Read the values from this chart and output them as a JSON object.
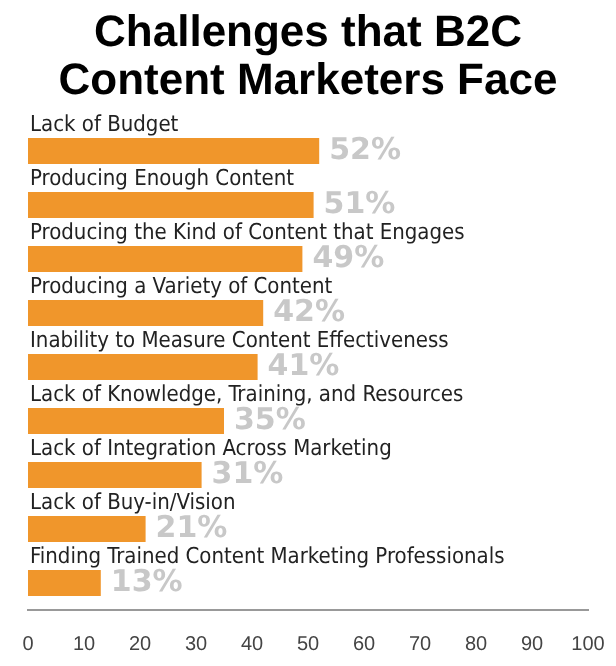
{
  "chart_data": {
    "type": "bar",
    "orientation": "horizontal",
    "title": "Challenges that B2C Content Marketers Face",
    "categories": [
      "Lack of Budget",
      "Producing Enough Content",
      "Producing the Kind of Content that Engages",
      "Producing a Variety of Content",
      "Inability to Measure Content Effectiveness",
      "Lack of Knowledge, Training, and Resources",
      "Lack of Integration Across Marketing",
      "Lack of Buy-in/Vision",
      "Finding Trained Content Marketing Professionals"
    ],
    "values": [
      52,
      51,
      49,
      42,
      41,
      35,
      31,
      21,
      13
    ],
    "value_labels": [
      "52%",
      "51%",
      "49%",
      "42%",
      "41%",
      "35%",
      "31%",
      "21%",
      "13%"
    ],
    "color": "#f0962b",
    "xlim": [
      0,
      100
    ],
    "xticks": [
      0,
      10,
      20,
      30,
      40,
      50,
      60,
      70,
      80,
      90,
      100
    ],
    "grid": false,
    "legend": false
  }
}
